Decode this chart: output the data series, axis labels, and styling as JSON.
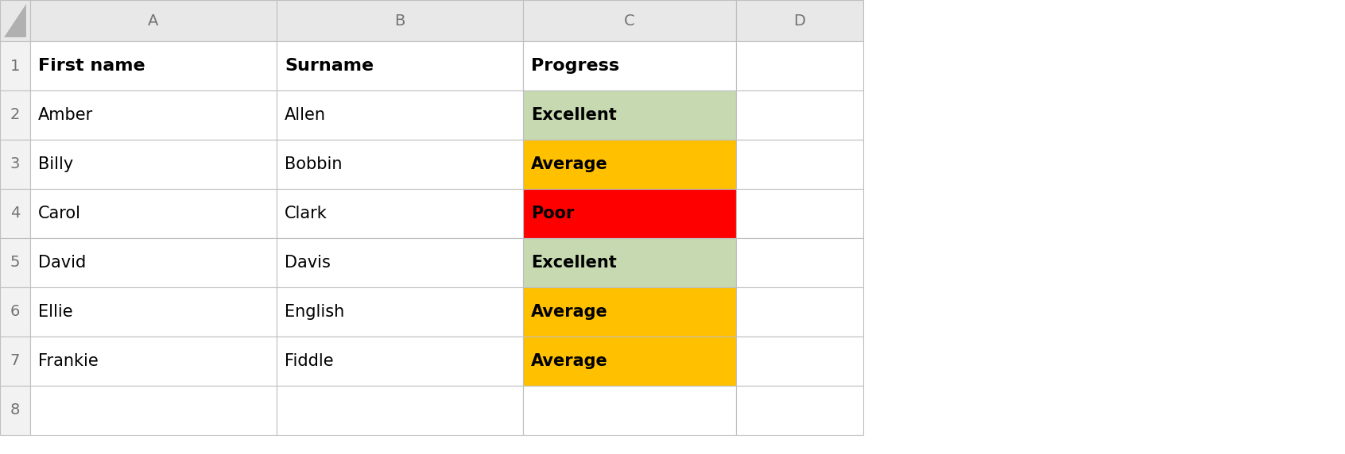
{
  "col_headers": [
    "A",
    "B",
    "C",
    "D"
  ],
  "row_numbers": [
    "1",
    "2",
    "3",
    "4",
    "5",
    "6",
    "7",
    "8"
  ],
  "headers": [
    "First name",
    "Surname",
    "Progress"
  ],
  "rows": [
    [
      "Amber",
      "Allen",
      "Excellent"
    ],
    [
      "Billy",
      "Bobbin",
      "Average"
    ],
    [
      "Carol",
      "Clark",
      "Poor"
    ],
    [
      "David",
      "Davis",
      "Excellent"
    ],
    [
      "Ellie",
      "English",
      "Average"
    ],
    [
      "Frankie",
      "Fiddle",
      "Average"
    ]
  ],
  "progress_colors": {
    "Excellent": "#c6d9b0",
    "Average": "#FFC000",
    "Poor": "#FF0000"
  },
  "bg_color": "#ffffff",
  "grid_color": "#bfbfbf",
  "col_header_bg": "#e8e8e8",
  "row_num_bg": "#f2f2f2",
  "triangle_color": "#b0b0b0",
  "figsize": [
    16.92,
    5.72
  ],
  "dpi": 100,
  "font_family": "Arial",
  "col_header_color": "#737373",
  "row_num_color": "#737373"
}
